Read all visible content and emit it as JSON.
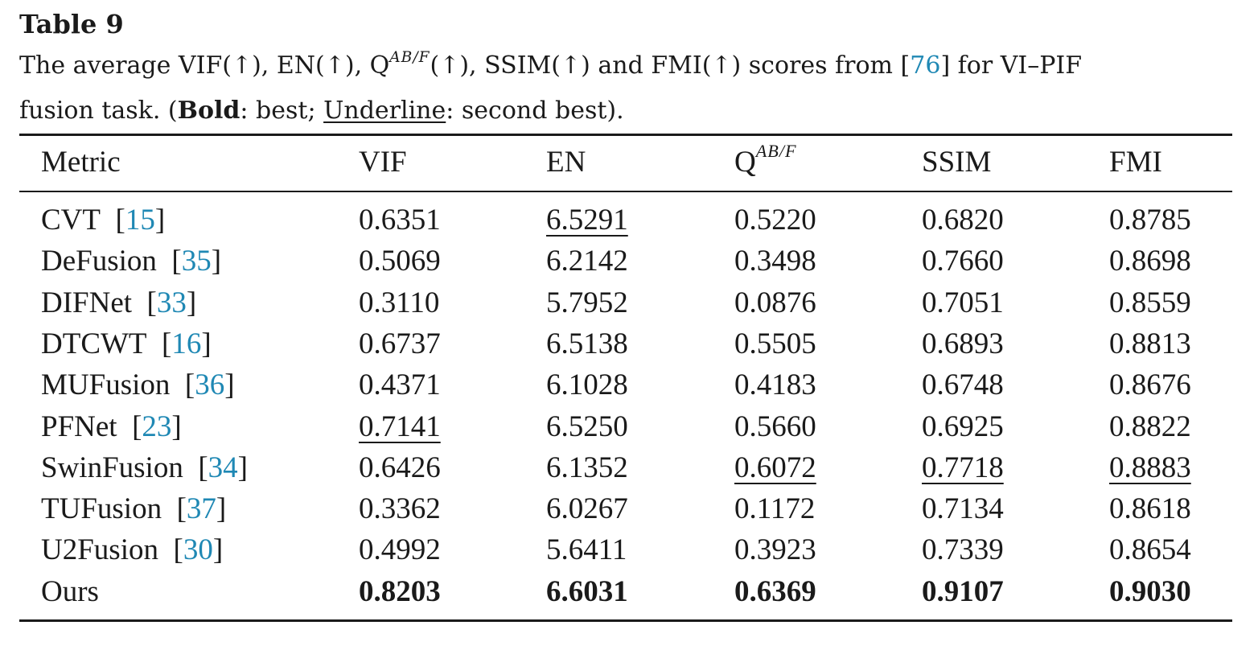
{
  "table_label": "Table 9",
  "caption": {
    "p1": "The average VIF(↑), EN(↑), Q",
    "q_sup": "AB/F",
    "p2": "(↑), SSIM(↑) and FMI(↑) scores from [",
    "ref": "76",
    "p3": "] for VI–PIF",
    "p4": "fusion task. (",
    "bold_word": "Bold",
    "p5": ": best; ",
    "underline_word": "Underline",
    "p6": ": second best)."
  },
  "header": {
    "metric": "Metric",
    "vif": "VIF",
    "en": "EN",
    "q": "Q",
    "q_sup": "AB/F",
    "ssim": "SSIM",
    "fmi": "FMI"
  },
  "rows": [
    {
      "method": "CVT",
      "ref": "15",
      "vif": "0.6351",
      "en": "6.5291",
      "q": "0.5220",
      "ssim": "0.6820",
      "fmi": "0.8785"
    },
    {
      "method": "DeFusion",
      "ref": "35",
      "vif": "0.5069",
      "en": "6.2142",
      "q": "0.3498",
      "ssim": "0.7660",
      "fmi": "0.8698"
    },
    {
      "method": "DIFNet",
      "ref": "33",
      "vif": "0.3110",
      "en": "5.7952",
      "q": "0.0876",
      "ssim": "0.7051",
      "fmi": "0.8559"
    },
    {
      "method": "DTCWT",
      "ref": "16",
      "vif": "0.6737",
      "en": "6.5138",
      "q": "0.5505",
      "ssim": "0.6893",
      "fmi": "0.8813"
    },
    {
      "method": "MUFusion",
      "ref": "36",
      "vif": "0.4371",
      "en": "6.1028",
      "q": "0.4183",
      "ssim": "0.6748",
      "fmi": "0.8676"
    },
    {
      "method": "PFNet",
      "ref": "23",
      "vif": "0.7141",
      "en": "6.5250",
      "q": "0.5660",
      "ssim": "0.6925",
      "fmi": "0.8822"
    },
    {
      "method": "SwinFusion",
      "ref": "34",
      "vif": "0.6426",
      "en": "6.1352",
      "q": "0.6072",
      "ssim": "0.7718",
      "fmi": "0.8883"
    },
    {
      "method": "TUFusion",
      "ref": "37",
      "vif": "0.3362",
      "en": "6.0267",
      "q": "0.1172",
      "ssim": "0.7134",
      "fmi": "0.8618"
    },
    {
      "method": "U2Fusion",
      "ref": "30",
      "vif": "0.4992",
      "en": "5.6411",
      "q": "0.3923",
      "ssim": "0.7339",
      "fmi": "0.8654"
    },
    {
      "method": "Ours",
      "ref": "",
      "vif": "0.8203",
      "en": "6.6031",
      "q": "0.6369",
      "ssim": "0.9107",
      "fmi": "0.9030"
    }
  ],
  "best": {
    "vif": 9,
    "en": 9,
    "q": 9,
    "ssim": 9,
    "fmi": 9
  },
  "second": {
    "vif": 5,
    "en": 0,
    "q": 6,
    "ssim": 6,
    "fmi": 6
  },
  "colors": {
    "text": "#1a1a1a",
    "citation": "#1f88b4"
  }
}
